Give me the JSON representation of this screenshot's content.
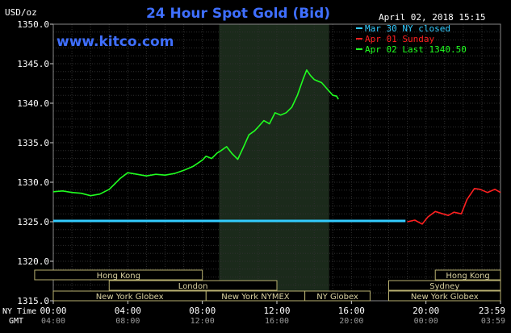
{
  "chart_data": {
    "type": "line",
    "title": "24 Hour Spot Gold (Bid)",
    "ylabel": "USD/oz",
    "watermark": "www.kitco.com",
    "timestamp": "April 02, 2018 15:15",
    "ylim": [
      1315,
      1350
    ],
    "y_ticks": [
      "1350.0",
      "1345.0",
      "1340.0",
      "1335.0",
      "1330.0",
      "1325.0",
      "1320.0",
      "1315.0"
    ],
    "x_axis_ny_label": "NY Time",
    "x_axis_gmt_label": "GMT",
    "x_ticks_ny": [
      "00:00",
      "04:00",
      "08:00",
      "12:00",
      "16:00",
      "20:00",
      "23:59"
    ],
    "x_ticks_gmt": [
      "04:00",
      "08:00",
      "12:00",
      "16:00",
      "20:00",
      "00:00",
      "03:59"
    ],
    "legend": [
      {
        "label": "Mar 30 NY closed",
        "color": "#33ccff"
      },
      {
        "label": "Apr 01 Sunday",
        "color": "#ff2020"
      },
      {
        "label": "Apr 02 Last 1340.50",
        "color": "#20ff20"
      }
    ],
    "highlight_hours": [
      8.9,
      14.8
    ],
    "series": [
      {
        "name": "Mar 30 NY closed",
        "color": "#33ccff",
        "x": [
          0,
          18.9
        ],
        "y": [
          1325.1,
          1325.1
        ]
      },
      {
        "name": "Apr 01 Sunday",
        "color": "#ff2020",
        "x": [
          19.0,
          19.4,
          19.8,
          20.1,
          20.5,
          20.9,
          21.2,
          21.5,
          21.9,
          22.2,
          22.6,
          22.9,
          23.3,
          23.7,
          24.0
        ],
        "y": [
          1325.0,
          1325.2,
          1324.7,
          1325.6,
          1326.3,
          1326.0,
          1325.8,
          1326.2,
          1326.0,
          1327.8,
          1329.2,
          1329.1,
          1328.7,
          1329.1,
          1328.7
        ]
      },
      {
        "name": "Apr 02 Last 1340.50",
        "color": "#20ff20",
        "x": [
          0,
          0.5,
          1.0,
          1.5,
          2.0,
          2.5,
          3.0,
          3.3,
          3.6,
          4.0,
          4.5,
          5.0,
          5.5,
          6.0,
          6.5,
          7.0,
          7.5,
          8.0,
          8.2,
          8.5,
          8.8,
          9.0,
          9.3,
          9.6,
          9.9,
          10.2,
          10.5,
          10.8,
          11.0,
          11.3,
          11.6,
          11.9,
          12.2,
          12.5,
          12.8,
          13.1,
          13.4,
          13.6,
          13.8,
          14.0,
          14.2,
          14.4,
          14.7,
          15.0,
          15.2,
          15.3
        ],
        "y": [
          1328.8,
          1328.9,
          1328.7,
          1328.6,
          1328.3,
          1328.5,
          1329.1,
          1329.8,
          1330.5,
          1331.2,
          1331.0,
          1330.8,
          1331.0,
          1330.9,
          1331.1,
          1331.5,
          1332.0,
          1332.8,
          1333.3,
          1333.0,
          1333.7,
          1334.0,
          1334.5,
          1333.6,
          1332.9,
          1334.4,
          1336.0,
          1336.5,
          1337.0,
          1337.8,
          1337.4,
          1338.8,
          1338.5,
          1338.8,
          1339.5,
          1341.0,
          1343.0,
          1344.2,
          1343.5,
          1343.0,
          1342.8,
          1342.6,
          1341.8,
          1341.0,
          1340.9,
          1340.5
        ]
      }
    ],
    "sessions": [
      {
        "name": "Hong Kong",
        "row": 0,
        "start": -1,
        "end": 8
      },
      {
        "name": "Hong Kong",
        "row": 0,
        "start": 20.5,
        "end": 24
      },
      {
        "name": "London",
        "row": 1,
        "start": 3,
        "end": 12
      },
      {
        "name": "Sydney",
        "row": 1,
        "start": 18,
        "end": 24
      },
      {
        "name": "New York Globex",
        "row": 2,
        "start": 0,
        "end": 8.2
      },
      {
        "name": "New York NYMEX",
        "row": 2,
        "start": 8.2,
        "end": 13.5
      },
      {
        "name": "NY Globex",
        "row": 2,
        "start": 13.5,
        "end": 17
      },
      {
        "name": "New York Globex",
        "row": 2,
        "start": 18,
        "end": 24
      }
    ]
  }
}
